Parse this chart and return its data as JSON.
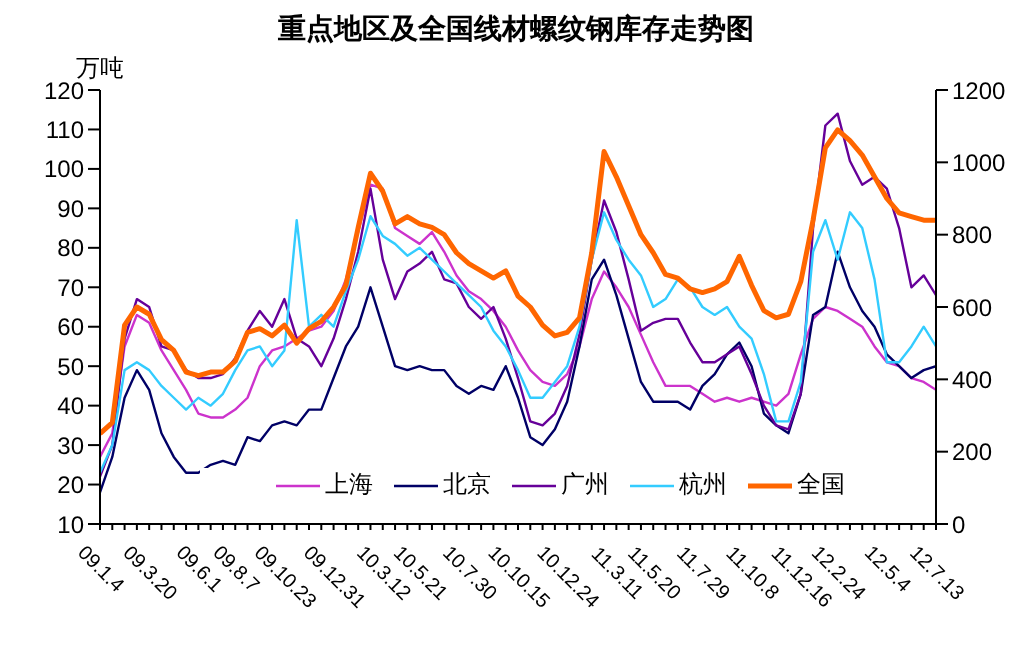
{
  "chart_data": {
    "type": "line",
    "title": "重点地区及全国线材螺纹钢库存走势图",
    "ylabel": "万吨",
    "categories": [
      "09.1.4",
      null,
      null,
      null,
      "09.3.20",
      null,
      null,
      null,
      "09.6.1",
      null,
      null,
      "09.8.7",
      null,
      null,
      null,
      "09.10.23",
      null,
      null,
      null,
      "09.12.31",
      null,
      null,
      null,
      "10.3.12",
      null,
      null,
      "10.5.21",
      null,
      null,
      null,
      "10.7.30",
      null,
      null,
      null,
      "10.10.15",
      null,
      null,
      null,
      "10.12.24",
      null,
      null,
      null,
      "11.3.11",
      null,
      null,
      "11.5.20",
      null,
      null,
      null,
      "11.7.29",
      null,
      null,
      null,
      "11.10.8",
      null,
      null,
      null,
      "11.12.16",
      null,
      null,
      "12.2.24",
      null,
      null,
      null,
      "12.5.4",
      null,
      null,
      null,
      "12.7.13"
    ],
    "ylim": [
      10,
      120
    ],
    "yticks": [
      10,
      20,
      30,
      40,
      50,
      60,
      70,
      80,
      90,
      100,
      110,
      120
    ],
    "y2lim": [
      0,
      1200
    ],
    "y2ticks": [
      0,
      200,
      400,
      600,
      800,
      1000,
      1200
    ],
    "grid": false,
    "legend": "bottom",
    "marker": "none",
    "line_style": "solid",
    "series": [
      {
        "name": "上海",
        "color": "#cc33cc",
        "values": [
          27,
          33,
          55,
          63,
          61,
          54,
          49,
          44,
          38,
          37,
          37,
          39,
          42,
          50,
          54,
          55,
          57,
          59,
          60,
          64,
          72,
          84,
          96,
          95,
          85,
          83,
          81,
          84,
          79,
          73,
          69,
          67,
          64,
          60,
          54,
          49,
          46,
          45,
          48,
          55,
          67,
          74,
          70,
          65,
          58,
          51,
          45,
          45,
          45,
          43,
          41,
          42,
          41,
          42,
          41,
          40,
          43,
          53,
          62,
          65,
          64,
          62,
          60,
          55,
          51,
          50,
          47,
          46,
          44
        ]
      },
      {
        "name": "北京",
        "color": "#000066",
        "values": [
          18,
          27,
          42,
          49,
          44,
          33,
          27,
          23,
          23,
          25,
          26,
          25,
          32,
          31,
          35,
          36,
          35,
          39,
          39,
          47,
          55,
          60,
          70,
          60,
          50,
          49,
          50,
          49,
          49,
          45,
          43,
          45,
          44,
          50,
          42,
          32,
          30,
          34,
          41,
          55,
          72,
          77,
          68,
          57,
          46,
          41,
          41,
          41,
          39,
          45,
          48,
          53,
          56,
          50,
          38,
          35,
          33,
          43,
          63,
          65,
          79,
          70,
          64,
          60,
          53,
          50,
          47,
          49,
          50
        ]
      },
      {
        "name": "广州",
        "color": "#660099",
        "values": [
          22,
          30,
          57,
          67,
          65,
          55,
          54,
          49,
          47,
          47,
          48,
          52,
          59,
          64,
          60,
          67,
          57,
          55,
          50,
          57,
          67,
          79,
          95,
          77,
          67,
          74,
          76,
          79,
          72,
          71,
          65,
          62,
          65,
          57,
          47,
          36,
          35,
          38,
          45,
          58,
          77,
          92,
          84,
          72,
          59,
          61,
          62,
          62,
          56,
          51,
          51,
          53,
          55,
          48,
          40,
          35,
          34,
          43,
          85,
          111,
          114,
          102,
          96,
          98,
          95,
          85,
          70,
          73,
          68
        ]
      },
      {
        "name": "杭州",
        "color": "#33ccff",
        "values": [
          23,
          30,
          49,
          51,
          49,
          45,
          42,
          39,
          42,
          40,
          43,
          49,
          54,
          55,
          50,
          54,
          87,
          60,
          63,
          60,
          69,
          77,
          88,
          83,
          81,
          78,
          80,
          77,
          74,
          71,
          68,
          65,
          59,
          55,
          49,
          42,
          42,
          46,
          50,
          60,
          77,
          89,
          82,
          77,
          73,
          65,
          67,
          72,
          70,
          65,
          63,
          65,
          60,
          57,
          48,
          36,
          36,
          46,
          79,
          87,
          77,
          89,
          85,
          72,
          51,
          51,
          55,
          60,
          55
        ]
      },
      {
        "name": "全国",
        "color": "#ff6600",
        "axis": "y2",
        "values": [
          250,
          280,
          550,
          600,
          580,
          510,
          480,
          420,
          410,
          420,
          420,
          450,
          530,
          540,
          520,
          550,
          500,
          540,
          560,
          600,
          660,
          820,
          970,
          920,
          830,
          850,
          830,
          820,
          800,
          750,
          720,
          700,
          680,
          700,
          630,
          600,
          550,
          520,
          530,
          570,
          750,
          1030,
          960,
          880,
          800,
          750,
          690,
          680,
          650,
          640,
          650,
          670,
          740,
          660,
          590,
          570,
          580,
          670,
          840,
          1040,
          1090,
          1060,
          1020,
          960,
          900,
          860,
          850,
          840,
          840
        ]
      }
    ]
  }
}
